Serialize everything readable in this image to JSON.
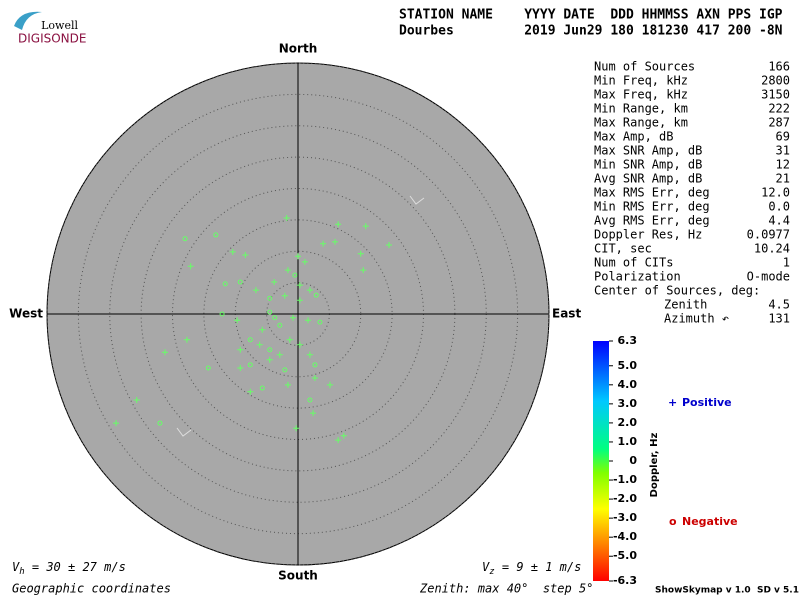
{
  "logo": {
    "top": "Lowell",
    "bottom": "DIGISONDE"
  },
  "header": {
    "row1": "STATION NAME    YYYY DATE  DDD HHMMSS AXN PPS IGP",
    "row2": "Dourbes         2019 Jun29 180 181230 417 200 -8N"
  },
  "stats": [
    [
      "Num of Sources",
      "166"
    ],
    [
      "Min Freq, kHz",
      "2800"
    ],
    [
      "Max Freq, kHz",
      "3150"
    ],
    [
      "Min Range, km",
      "222"
    ],
    [
      "Max Range, km",
      "287"
    ],
    [
      "Max Amp, dB",
      "69"
    ],
    [
      "Max SNR Amp, dB",
      "31"
    ],
    [
      "Min SNR Amp, dB",
      "12"
    ],
    [
      "Avg SNR Amp, dB",
      "21"
    ],
    [
      "Max RMS Err, deg",
      "12.0"
    ],
    [
      "Min RMS Err, deg",
      "0.0"
    ],
    [
      "Avg RMS Err, deg",
      "4.4"
    ],
    [
      "Doppler Res, Hz",
      "0.0977"
    ],
    [
      "CIT, sec",
      "10.24"
    ],
    [
      "Num of CITs",
      "1"
    ],
    [
      "Polarization",
      "O-mode"
    ]
  ],
  "center": {
    "title": "Center of Sources, deg:",
    "zenith": [
      "Zenith",
      "4.5"
    ],
    "azimuth": [
      "Azimuth ↶",
      "131"
    ]
  },
  "chart_data": {
    "type": "scatter",
    "directions": {
      "north": "North",
      "south": "South",
      "east": "East",
      "west": "West"
    },
    "rlim": [
      0,
      40
    ],
    "rings": [
      5,
      10,
      15,
      20,
      25,
      30,
      35,
      40
    ],
    "point_color": "#66ff66",
    "series": [
      {
        "name": "Positive",
        "marker": "+",
        "color": "#0000cc",
        "x": [
          -1.8,
          6.4,
          10.8,
          14.5,
          -17.1,
          -10.4,
          -8.4,
          4.0,
          5.9,
          10.0,
          10.4,
          0,
          1.1,
          -1.6,
          -3.8,
          0.3,
          1.9,
          -6.7,
          -2.1,
          0.3,
          -5.7,
          -0.8,
          1.6,
          -9.7,
          -17.7,
          -21.2,
          -9.2,
          -6.1,
          -2.9,
          -1.3,
          0.3,
          1.9,
          -4.5,
          -9.2,
          -7.6,
          -1.6,
          2.7,
          5.1,
          -25.7,
          -29.0,
          -0.3,
          6.4,
          7.3,
          2.4
        ],
        "y": [
          15.3,
          14.3,
          14.0,
          11.0,
          7.6,
          9.9,
          9.4,
          11.2,
          11.5,
          9.6,
          7.0,
          9.2,
          8.3,
          7.0,
          5.1,
          4.6,
          3.8,
          3.8,
          2.9,
          2.2,
          -2.5,
          -0.6,
          -1.0,
          -1.0,
          -4.1,
          -6.1,
          -5.7,
          -4.9,
          -6.5,
          -4.1,
          -4.9,
          -6.5,
          -7.3,
          -8.6,
          -12.4,
          -11.3,
          -10.2,
          -11.3,
          -13.7,
          -17.4,
          -18.2,
          -20.1,
          -19.4,
          -15.8
        ]
      },
      {
        "name": "Negative",
        "marker": "o",
        "color": "#cc0000",
        "x": [
          -18.0,
          -13.1,
          -0.5,
          2.9,
          -11.6,
          -9.2,
          -4.5,
          -4.5,
          -3.7,
          -2.9,
          3.5,
          -12.1,
          -14.3,
          -7.6,
          -4.5,
          2.7,
          -2.1,
          -7.6,
          -5.7,
          1.9,
          -22.0
        ],
        "y": [
          12.0,
          12.6,
          6.2,
          3.0,
          4.8,
          5.1,
          2.5,
          0.3,
          -0.6,
          -1.8,
          -1.3,
          0,
          -8.6,
          -4.1,
          -5.7,
          -8.1,
          -8.9,
          -8.1,
          -11.8,
          -13.7,
          -17.4
        ]
      }
    ],
    "colorbar": {
      "label": "Doppler, Hz",
      "lim": [
        -6.3,
        6.3
      ],
      "ticks": [
        6.3,
        {
          "value": 5,
          "label": "5.0"
        },
        {
          "value": 4,
          "label": "4.0"
        },
        {
          "value": 3,
          "label": "3.0"
        },
        {
          "value": 2,
          "label": "2.0"
        },
        {
          "value": 1,
          "label": "1.0"
        },
        0,
        {
          "value": -1,
          "label": "-1.0"
        },
        {
          "value": -2,
          "label": "-2.0"
        },
        {
          "value": -3,
          "label": "-3.0"
        },
        {
          "value": -4,
          "label": "-4.0"
        },
        {
          "value": -5,
          "label": "-5.0"
        },
        -6.3
      ]
    }
  },
  "footer": {
    "vh": [
      "V",
      "h",
      " = 30 ± 27 m/s"
    ],
    "vz": [
      "V",
      "z",
      " = 9 ± 1 m/s"
    ],
    "coords": "Geographic coordinates",
    "zenith": "Zenith: max 40°  step 5°",
    "version": "ShowSkymap v 1.0  SD v 5.1"
  }
}
